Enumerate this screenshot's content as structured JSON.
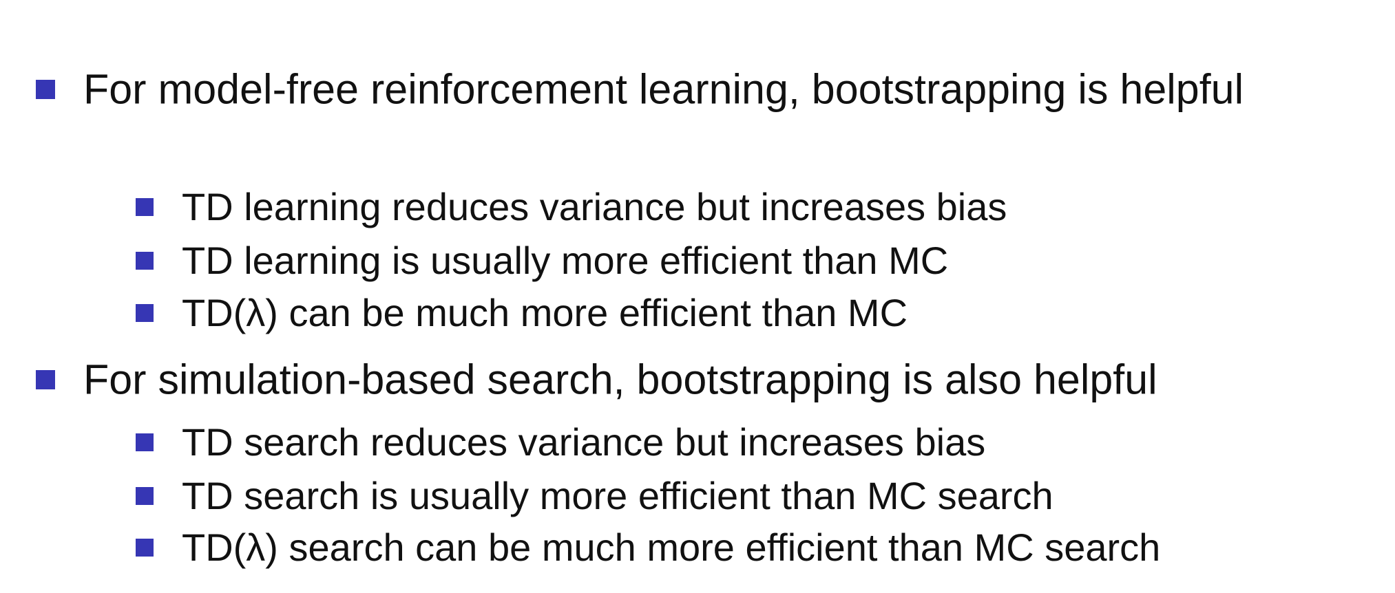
{
  "items": [
    {
      "text": "For model-free reinforcement learning, bootstrapping is helpful",
      "children": [
        "TD learning reduces variance but increases bias",
        "TD learning is usually more efficient than MC",
        "TD(λ) can be much more efficient than MC"
      ]
    },
    {
      "text": "For simulation-based search, bootstrapping is also helpful",
      "children": [
        "TD search reduces variance but increases bias",
        "TD search is usually more efficient than MC search",
        "TD(λ) search can be much more efficient than MC search"
      ]
    }
  ]
}
